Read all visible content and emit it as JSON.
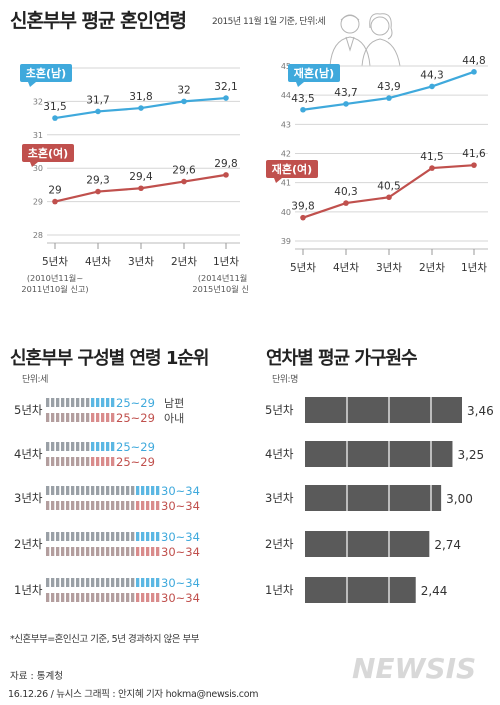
{
  "header": {
    "title": "신혼부부 평균 혼인연령",
    "subtitle": "2015년 11월 1일 기준, 단위:세"
  },
  "x_categories": [
    "5년차",
    "4년차",
    "3년차",
    "2년차",
    "1년차"
  ],
  "x_notes": {
    "left": [
      "(2010년11월~",
      "2011년10월 신고)"
    ],
    "right": [
      "(2014년11월~",
      "2015년10월 신고)"
    ]
  },
  "colors": {
    "blue": "#3fa9dc",
    "red": "#c0504d",
    "gray": "#5a5a5a",
    "lightBlue": "#5bb7e3",
    "lightRed": "#d98b8b"
  },
  "chart_data": [
    {
      "type": "line",
      "title": "",
      "categories": [
        "5년차",
        "4년차",
        "3년차",
        "2년차",
        "1년차"
      ],
      "ylim": [
        28,
        33
      ],
      "yticks": [
        28,
        29,
        30,
        31,
        32,
        33
      ],
      "series": [
        {
          "name": "초혼(남)",
          "values": [
            31.5,
            31.7,
            31.8,
            32,
            32.1
          ],
          "labels": [
            "31,5",
            "31,7",
            "31,8",
            "32",
            "32,1"
          ],
          "color": "blue"
        },
        {
          "name": "초혼(여)",
          "values": [
            29,
            29.3,
            29.4,
            29.6,
            29.8
          ],
          "labels": [
            "29",
            "29,3",
            "29,4",
            "29,6",
            "29,8"
          ],
          "color": "red"
        }
      ]
    },
    {
      "type": "line",
      "title": "",
      "categories": [
        "5년차",
        "4년차",
        "3년차",
        "2년차",
        "1년차"
      ],
      "ylim": [
        39,
        45
      ],
      "yticks": [
        39,
        40,
        41,
        42,
        43,
        44,
        45
      ],
      "series": [
        {
          "name": "재혼(남)",
          "values": [
            43.5,
            43.7,
            43.9,
            44.3,
            44.8
          ],
          "labels": [
            "43,5",
            "43,7",
            "43,9",
            "44,3",
            "44,8"
          ],
          "color": "blue"
        },
        {
          "name": "재혼(여)",
          "values": [
            39.8,
            40.3,
            40.5,
            41.5,
            41.6
          ],
          "labels": [
            "39,8",
            "40,3",
            "40,5",
            "41,5",
            "41,6"
          ],
          "color": "red"
        }
      ]
    },
    {
      "type": "bar",
      "title": "신혼부부 구성별 연령 1순위",
      "unit": "단위:세",
      "categories": [
        "5년차",
        "4년차",
        "3년차",
        "2년차",
        "1년차"
      ],
      "series": [
        {
          "name": "남편",
          "values": [
            "25~29",
            "25~29",
            "30~34",
            "30~34",
            "30~34"
          ],
          "color": "blue"
        },
        {
          "name": "아내",
          "values": [
            "25~29",
            "25~29",
            "30~34",
            "30~34",
            "30~34"
          ],
          "color": "red"
        }
      ],
      "legend_labels": {
        "husband": "남편",
        "wife": "아내"
      }
    },
    {
      "type": "bar",
      "title": "연차별 평균 가구원수",
      "unit": "단위:명",
      "categories": [
        "5년차",
        "4년차",
        "3년차",
        "2년차",
        "1년차"
      ],
      "values": [
        3.46,
        3.25,
        3.0,
        2.74,
        2.44
      ],
      "labels": [
        "3,46",
        "3,25",
        "3,00",
        "2,74",
        "2,44"
      ],
      "xlim": [
        0,
        3.6
      ]
    }
  ],
  "footer": {
    "note": "*신혼부부=혼인신고 기준, 5년 경과하지 않은 부부",
    "source": "자료 : 통계청",
    "credit": "16.12.26 / 뉴시스 그래픽 : 안지혜 기자 hokma@newsis.com",
    "logo": "NEWSIS"
  }
}
